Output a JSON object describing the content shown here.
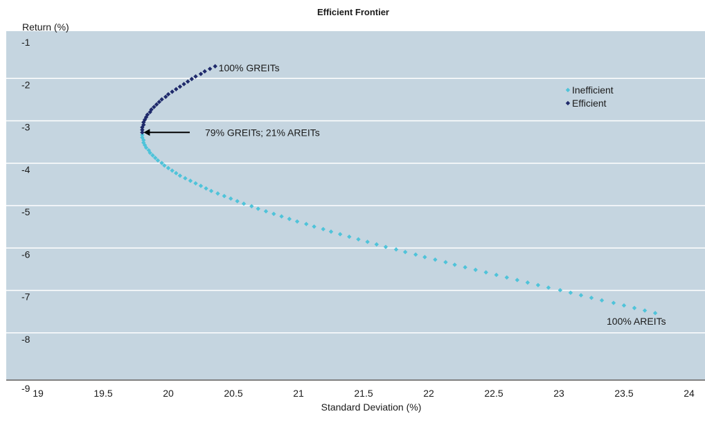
{
  "chart_data": {
    "type": "scatter",
    "title": "Efficient Frontier",
    "xlabel": "Standard Deviation (%)",
    "ylabel": "Return (%)",
    "xlim": [
      19,
      24
    ],
    "ylim": [
      -9,
      -1
    ],
    "x_ticks": [
      "19",
      "19.5",
      "20",
      "20.5",
      "21",
      "21.5",
      "22",
      "22.5",
      "23",
      "23.5",
      "24"
    ],
    "y_ticks": [
      "-1",
      "-2",
      "-3",
      "-4",
      "-5",
      "-6",
      "-7",
      "-8",
      "-9"
    ],
    "grid": true,
    "legend_position": "top-right",
    "colors": {
      "plot_background": "#c5d5e0",
      "grid": "#ffffff",
      "inefficient": "#4fc3d9",
      "efficient": "#1f2a6b",
      "axis": "#000000"
    },
    "series": [
      {
        "name": "Inefficient",
        "points": [
          [
            19.8,
            -3.22
          ],
          [
            19.8,
            -3.28
          ],
          [
            19.81,
            -3.34
          ],
          [
            19.81,
            -3.4
          ],
          [
            19.82,
            -3.46
          ],
          [
            19.83,
            -3.52
          ],
          [
            19.85,
            -3.58
          ],
          [
            19.86,
            -3.64
          ],
          [
            19.88,
            -3.7
          ],
          [
            19.9,
            -3.76
          ],
          [
            19.92,
            -3.82
          ],
          [
            19.95,
            -3.88
          ],
          [
            19.97,
            -3.94
          ],
          [
            20.0,
            -4.0
          ],
          [
            20.03,
            -4.06
          ],
          [
            20.06,
            -4.12
          ],
          [
            20.09,
            -4.18
          ],
          [
            20.13,
            -4.24
          ],
          [
            20.17,
            -4.3
          ],
          [
            20.21,
            -4.36
          ],
          [
            20.25,
            -4.42
          ],
          [
            20.29,
            -4.48
          ],
          [
            20.33,
            -4.54
          ],
          [
            20.38,
            -4.6
          ],
          [
            20.43,
            -4.66
          ],
          [
            20.48,
            -4.72
          ],
          [
            20.53,
            -4.78
          ],
          [
            20.58,
            -4.84
          ],
          [
            20.64,
            -4.9
          ],
          [
            20.69,
            -4.96
          ],
          [
            20.75,
            -5.02
          ],
          [
            20.81,
            -5.08
          ],
          [
            20.87,
            -5.14
          ],
          [
            20.93,
            -5.2
          ],
          [
            20.99,
            -5.26
          ],
          [
            21.06,
            -5.32
          ],
          [
            21.12,
            -5.38
          ],
          [
            21.19,
            -5.44
          ],
          [
            21.25,
            -5.5
          ],
          [
            21.32,
            -5.56
          ],
          [
            21.39,
            -5.62
          ],
          [
            21.46,
            -5.68
          ],
          [
            21.53,
            -5.74
          ],
          [
            21.6,
            -5.8
          ],
          [
            21.67,
            -5.86
          ],
          [
            21.75,
            -5.92
          ],
          [
            21.82,
            -5.98
          ],
          [
            21.9,
            -6.04
          ],
          [
            21.97,
            -6.1
          ],
          [
            22.05,
            -6.16
          ],
          [
            22.13,
            -6.22
          ],
          [
            22.2,
            -6.28
          ],
          [
            22.28,
            -6.34
          ],
          [
            22.36,
            -6.4
          ],
          [
            22.44,
            -6.46
          ],
          [
            22.52,
            -6.52
          ],
          [
            22.6,
            -6.58
          ],
          [
            22.68,
            -6.64
          ],
          [
            22.76,
            -6.7
          ],
          [
            22.84,
            -6.76
          ],
          [
            22.92,
            -6.82
          ],
          [
            23.01,
            -6.88
          ],
          [
            23.09,
            -6.94
          ],
          [
            23.17,
            -7.0
          ],
          [
            23.25,
            -7.06
          ],
          [
            23.33,
            -7.12
          ],
          [
            23.42,
            -7.18
          ],
          [
            23.5,
            -7.24
          ],
          [
            23.58,
            -7.3
          ],
          [
            23.66,
            -7.36
          ],
          [
            23.74,
            -7.42
          ]
        ]
      },
      {
        "name": "Efficient",
        "points": [
          [
            19.8,
            -3.16
          ],
          [
            19.8,
            -3.1
          ],
          [
            19.8,
            -3.04
          ],
          [
            19.81,
            -2.98
          ],
          [
            19.81,
            -2.92
          ],
          [
            19.82,
            -2.86
          ],
          [
            19.83,
            -2.8
          ],
          [
            19.84,
            -2.74
          ],
          [
            19.86,
            -2.68
          ],
          [
            19.87,
            -2.62
          ],
          [
            19.89,
            -2.56
          ],
          [
            19.91,
            -2.5
          ],
          [
            19.93,
            -2.44
          ],
          [
            19.95,
            -2.38
          ],
          [
            19.98,
            -2.32
          ],
          [
            20.0,
            -2.26
          ],
          [
            20.03,
            -2.2
          ],
          [
            20.06,
            -2.14
          ],
          [
            20.09,
            -2.08
          ],
          [
            20.12,
            -2.02
          ],
          [
            20.15,
            -1.96
          ],
          [
            20.18,
            -1.9
          ],
          [
            20.21,
            -1.84
          ],
          [
            20.25,
            -1.78
          ],
          [
            20.28,
            -1.72
          ],
          [
            20.32,
            -1.66
          ],
          [
            20.36,
            -1.6
          ]
        ]
      }
    ],
    "annotations": [
      {
        "id": "greits",
        "text": "100% GREITs",
        "x": 20.36,
        "y": -1.6
      },
      {
        "id": "mvp",
        "text": "79% GREITs; 21% AREITs",
        "x": 19.8,
        "y": -3.16,
        "arrow": true
      },
      {
        "id": "areits",
        "text": "100% AREITs",
        "x": 23.74,
        "y": -7.42
      }
    ]
  }
}
